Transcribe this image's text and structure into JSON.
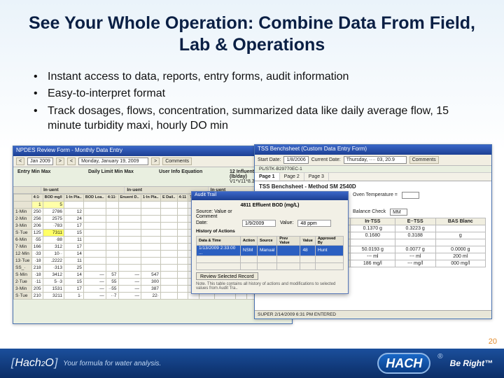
{
  "title": "See Your Whole Operation:  Combine Data From Field, Lab & Operations",
  "bullets": [
    "Instant access to data, reports, entry forms, audit information",
    "Easy-to-interpret format",
    "Track dosages, flows, concentration, summarized data like daily average flow, 15 minute turbidity maxi, hourly DO min"
  ],
  "left_window": {
    "title": "NPDES Review Form - Monthly Data Entry",
    "toolbar": {
      "month": "Jan 2009",
      "date": "Monday, January 19, 2009",
      "comments_btn": "Comments"
    },
    "header_labels": {
      "entry": "Entry Min Max",
      "daily": "Daily Limit Min Max",
      "user": "User Info Equation"
    },
    "header_vals": {
      "col_label": "12 Influent BOD Load (lb/day)",
      "val": "V1*V11*8.34"
    },
    "group_labels": {
      "g1": "In·uent",
      "g2": "In·uent",
      "g3": "In·uent"
    },
    "col_headers": [
      "",
      "4:1·",
      "BOD mg/l",
      "1·In Pla..",
      "BOD Loa..",
      "4:11·",
      "Enuent D..",
      "1·In Pla..",
      "E  Dail..",
      "4:11",
      "TSS",
      "·In Pl..",
      "TSS Loa..",
      "4:11",
      "E  ·In .uent",
      "eec.",
      "TSS"
    ],
    "data_rows": [
      [
        "1·Min",
        "250",
        "2786",
        "12"
      ],
      [
        "2·Min",
        "256",
        "2575",
        "24"
      ],
      [
        "3·Min",
        "206",
        "·783",
        "17"
      ],
      [
        "S·Tue",
        "125",
        "7311",
        "15"
      ],
      [
        "6·Min",
        "·55",
        "·88",
        "11"
      ],
      [
        "7·Min",
        "166",
        "312",
        "17"
      ],
      [
        "12·Min",
        "·33",
        "10··",
        "14"
      ],
      [
        "13·Tue",
        "·18",
        ".2222",
        "11"
      ],
      [
        "SS_·",
        "218",
        "·313",
        "25"
      ],
      [
        "S·Min",
        "·18",
        "3412",
        "14",
        "—",
        "57",
        "—",
        "547"
      ],
      [
        "2·Tue",
        "·11",
        "5··3",
        "15",
        "—",
        "55",
        "—",
        "300"
      ],
      [
        "3·Min",
        "205",
        "1531",
        "17",
        "—",
        "··55",
        "—",
        "387"
      ],
      [
        "S·Tue",
        "210",
        "3211",
        "1·",
        "—",
        "··7",
        "—",
        "22·"
      ]
    ],
    "highlight_row_index": 3,
    "highlight_col_index": 2,
    "input_cells_row_index": 0,
    "input_col1": "1",
    "input_col2": "5"
  },
  "right_window": {
    "title": "TSS Benchsheet (Custom Data Entry Form)",
    "toolbar": {
      "start": "Start Date:",
      "start_val": "1/8/2006",
      "current": "Current Date:",
      "current_val": "Thursday, ···· 03, 20.9",
      "comments_btn": "Comments"
    },
    "subtext": "PL/STK-B29770EC-1",
    "tabs": [
      "Page 1",
      "Page 2",
      "Page 3"
    ],
    "active_tab": 0,
    "section_title": "TSS Benchsheet - Method SM 2540D",
    "fields": {
      "analyst_label": "Analyst:",
      "analyst_val": "",
      "oven_label": "Oven Temperature =",
      "oven_val": "",
      "sample_label": "Sample Date:",
      "sample_val": "1/3/2009",
      "analysis_label": "Analysis Date:",
      "analysis_val": "MM/DD",
      "balance_check_label": "Balance Check",
      "balance_check_val": "MM"
    },
    "tss_table": {
      "cols": [
        "",
        "In·TSS",
        "E··TSS",
        "BAS Blanc"
      ],
      "rows": [
        [
          "Sample & Tare",
          "0.1370 g",
          "0.3223 g",
          ""
        ],
        [
          "Tare",
          "0.1680",
          "0.3188",
          "g"
        ],
        [
          "Net",
          "",
          "",
          ""
        ],
        [
          "Sample Volume",
          "50.0193 g",
          "0.0077 g",
          "0.0000 g"
        ],
        [
          "Concentration & Re...",
          "--- ml",
          "--- ml",
          "200 ml"
        ],
        [
          "",
          "186 mg/l",
          "--- mg/l",
          "000 mg/l"
        ]
      ]
    },
    "status": "SUPER  2/14/2009 6:31 PM  ENTERED"
  },
  "modal": {
    "title": "Audit Trail",
    "value_label": "4811 Effluent BOD (mg/L)",
    "fields": {
      "source_label": "Source: Value or Comment",
      "date_label": "Date:",
      "date_val": "1/9/2009",
      "value_inp_label": "Value:",
      "value_inp": "48 ppm"
    },
    "history_label": "History of Actions",
    "history_cols": [
      "Data & Time",
      "Action",
      "Source",
      "Prev Value",
      "Value",
      "Approved By"
    ],
    "history_row": [
      "1/13/2009 2:33:00 ...",
      "NSM",
      "Manual",
      "",
      "48",
      "Hunt"
    ],
    "btns": [
      "Review Selected Record"
    ],
    "note": "Note. This table contains all history of actions and modifications to selected values from Audit Tra.."
  },
  "page_number": "20",
  "footer": {
    "brand_left": "Hach 2O",
    "tagline_left": "Your formula for water analysis.",
    "brand_right": "HACH",
    "tagline_right": "Be Right™"
  }
}
